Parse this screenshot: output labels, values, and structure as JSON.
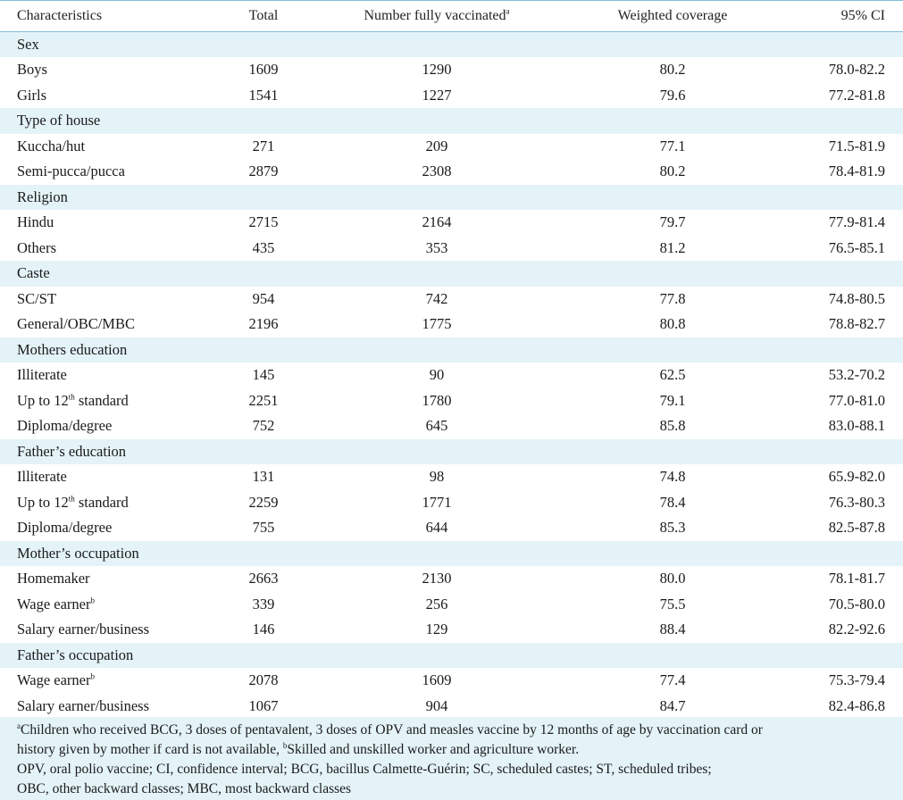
{
  "header": {
    "characteristics": "Characteristics",
    "total": "Total",
    "number_fully_vaccinated": "Number fully vaccinated",
    "number_fully_vaccinated_sup": "a",
    "weighted_coverage": "Weighted coverage",
    "ci": "95% CI"
  },
  "groups": [
    {
      "label": "Sex",
      "rows": [
        {
          "name": "Boys",
          "sup": "",
          "after": "",
          "total": "1609",
          "vacc": "1290",
          "cov": "80.2",
          "ci": "78.0-82.2"
        },
        {
          "name": "Girls",
          "sup": "",
          "after": "",
          "total": "1541",
          "vacc": "1227",
          "cov": "79.6",
          "ci": "77.2-81.8"
        }
      ]
    },
    {
      "label": "Type of house",
      "rows": [
        {
          "name": "Kuccha/hut",
          "sup": "",
          "after": "",
          "total": "271",
          "vacc": "209",
          "cov": "77.1",
          "ci": "71.5-81.9"
        },
        {
          "name": "Semi-pucca/pucca",
          "sup": "",
          "after": "",
          "total": "2879",
          "vacc": "2308",
          "cov": "80.2",
          "ci": "78.4-81.9"
        }
      ]
    },
    {
      "label": "Religion",
      "rows": [
        {
          "name": "Hindu",
          "sup": "",
          "after": "",
          "total": "2715",
          "vacc": "2164",
          "cov": "79.7",
          "ci": "77.9-81.4"
        },
        {
          "name": "Others",
          "sup": "",
          "after": "",
          "total": "435",
          "vacc": "353",
          "cov": "81.2",
          "ci": "76.5-85.1"
        }
      ]
    },
    {
      "label": "Caste",
      "rows": [
        {
          "name": "SC/ST",
          "sup": "",
          "after": "",
          "total": "954",
          "vacc": "742",
          "cov": "77.8",
          "ci": "74.8-80.5"
        },
        {
          "name": "General/OBC/MBC",
          "sup": "",
          "after": "",
          "total": "2196",
          "vacc": "1775",
          "cov": "80.8",
          "ci": "78.8-82.7"
        }
      ]
    },
    {
      "label": "Mothers education",
      "rows": [
        {
          "name": "Illiterate",
          "sup": "",
          "after": "",
          "total": "145",
          "vacc": "90",
          "cov": "62.5",
          "ci": "53.2-70.2"
        },
        {
          "name": "Up to 12",
          "sup": "th",
          "after": " standard",
          "total": "2251",
          "vacc": "1780",
          "cov": "79.1",
          "ci": "77.0-81.0"
        },
        {
          "name": "Diploma/degree",
          "sup": "",
          "after": "",
          "total": "752",
          "vacc": "645",
          "cov": "85.8",
          "ci": "83.0-88.1"
        }
      ]
    },
    {
      "label": "Father’s education",
      "rows": [
        {
          "name": "Illiterate",
          "sup": "",
          "after": "",
          "total": "131",
          "vacc": "98",
          "cov": "74.8",
          "ci": "65.9-82.0"
        },
        {
          "name": "Up to 12",
          "sup": "th",
          "after": " standard",
          "total": "2259",
          "vacc": "1771",
          "cov": "78.4",
          "ci": "76.3-80.3"
        },
        {
          "name": "Diploma/degree",
          "sup": "",
          "after": "",
          "total": "755",
          "vacc": "644",
          "cov": "85.3",
          "ci": "82.5-87.8"
        }
      ]
    },
    {
      "label": "Mother’s occupation",
      "rows": [
        {
          "name": "Homemaker",
          "sup": "",
          "after": "",
          "total": "2663",
          "vacc": "2130",
          "cov": "80.0",
          "ci": "78.1-81.7"
        },
        {
          "name": "Wage earner",
          "sup": "b",
          "after": "",
          "total": "339",
          "vacc": "256",
          "cov": "75.5",
          "ci": "70.5-80.0"
        },
        {
          "name": "Salary earner/business",
          "sup": "",
          "after": "",
          "total": "146",
          "vacc": "129",
          "cov": "88.4",
          "ci": "82.2-92.6"
        }
      ]
    },
    {
      "label": "Father’s occupation",
      "rows": [
        {
          "name": "Wage earner",
          "sup": "b",
          "after": "",
          "total": "2078",
          "vacc": "1609",
          "cov": "77.4",
          "ci": "75.3-79.4"
        },
        {
          "name": "Salary earner/business",
          "sup": "",
          "after": "",
          "total": "1067",
          "vacc": "904",
          "cov": "84.7",
          "ci": "82.4-86.8"
        }
      ]
    }
  ],
  "footnotes": {
    "a_sup": "a",
    "a_line1": "Children who received BCG, 3 doses of pentavalent, 3 doses of OPV and measles vaccine by 12 months of age by vaccination card or",
    "a_line2": "history given by mother if card is not available, ",
    "b_sup": "b",
    "b_text": "Skilled and unskilled worker and agriculture worker.",
    "abbr_line1": "OPV, oral polio vaccine; CI, confidence interval; BCG, bacillus Calmette-Guérin; SC, scheduled castes; ST, scheduled tribes;",
    "abbr_line2": "OBC, other backward classes; MBC, most backward classes"
  }
}
